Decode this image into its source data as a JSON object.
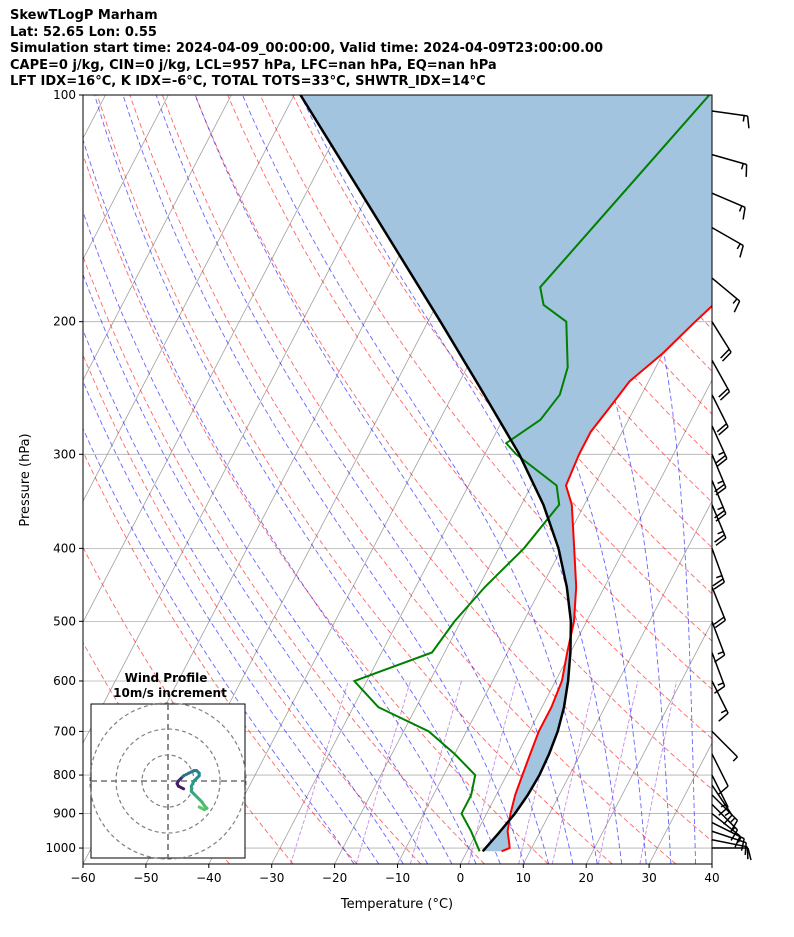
{
  "header": {
    "line1": "SkewTLogP Marham",
    "line2": "Lat: 52.65   Lon: 0.55",
    "line3": "Simulation start time: 2024-04-09_00:00:00, Valid time: 2024-04-09T23:00:00.00",
    "line4": "CAPE=0 j/kg, CIN=0 j/kg, LCL=957 hPa, LFC=nan hPa, EQ=nan hPa",
    "line5": "LFT IDX=16°C, K IDX=-6°C, TOTAL TOTS=33°C, SHWTR_IDX=14°C"
  },
  "chart_data": {
    "type": "skewt",
    "title": "SkewTLogP Marham",
    "xlabel": "Temperature (°C)",
    "ylabel": "Pressure (hPa)",
    "xlim": [
      -60,
      40
    ],
    "ylim": [
      1050,
      100
    ],
    "x_ticks": [
      -60,
      -50,
      -40,
      -30,
      -20,
      -10,
      0,
      10,
      20,
      30,
      40
    ],
    "x_tick_labels": [
      "−60",
      "−50",
      "−40",
      "−30",
      "−20",
      "−10",
      "0",
      "10",
      "20",
      "30",
      "40"
    ],
    "y_ticks": [
      1000,
      900,
      800,
      700,
      600,
      500,
      400,
      300,
      200,
      100
    ],
    "y_tick_labels": [
      "1000",
      "900",
      "800",
      "700",
      "600",
      "500",
      "400",
      "300",
      "200",
      "100"
    ],
    "colors": {
      "temperature": "#ff0000",
      "dewpoint": "#008000",
      "parcel": "#000000",
      "shade": "#a2c4de",
      "dry_adiabat": "#ff0000",
      "moist_adiabat": "#0000ff",
      "isotherm": "#808080"
    },
    "series": [
      {
        "name": "Temperature",
        "points": [
          [
            1010,
            5.5
          ],
          [
            1000,
            6.5
          ],
          [
            990,
            6.2
          ],
          [
            950,
            4.8
          ],
          [
            900,
            3.8
          ],
          [
            850,
            3.0
          ],
          [
            800,
            2.5
          ],
          [
            750,
            2.0
          ],
          [
            700,
            1.5
          ],
          [
            650,
            1.5
          ],
          [
            600,
            1.0
          ],
          [
            550,
            -0.5
          ],
          [
            500,
            -2.0
          ],
          [
            450,
            -4.5
          ],
          [
            400,
            -8.0
          ],
          [
            350,
            -12.0
          ],
          [
            330,
            -14.5
          ],
          [
            300,
            -15.0
          ],
          [
            280,
            -15.0
          ],
          [
            260,
            -14.0
          ],
          [
            240,
            -13.0
          ],
          [
            220,
            -10.0
          ],
          [
            200,
            -7.5
          ],
          [
            180,
            -4.5
          ],
          [
            160,
            -2.0
          ],
          [
            150,
            -1.0
          ],
          [
            140,
            0.0
          ],
          [
            125,
            3.0
          ],
          [
            110,
            5.0
          ],
          [
            100,
            7.0
          ]
        ]
      },
      {
        "name": "Dewpoint",
        "points": [
          [
            1010,
            2.0
          ],
          [
            950,
            -1.0
          ],
          [
            900,
            -4.0
          ],
          [
            850,
            -4.0
          ],
          [
            800,
            -5.0
          ],
          [
            750,
            -10.0
          ],
          [
            700,
            -16.0
          ],
          [
            650,
            -26.0
          ],
          [
            600,
            -32.0
          ],
          [
            550,
            -22.0
          ],
          [
            500,
            -21.0
          ],
          [
            450,
            -19.0
          ],
          [
            400,
            -16.0
          ],
          [
            350,
            -14.0
          ],
          [
            330,
            -16.0
          ],
          [
            300,
            -25.0
          ],
          [
            290,
            -27.5
          ],
          [
            270,
            -24.0
          ],
          [
            250,
            -23.0
          ],
          [
            230,
            -24.0
          ],
          [
            200,
            -28.0
          ],
          [
            190,
            -33.0
          ],
          [
            180,
            -35.0
          ],
          [
            100,
            -24.0
          ]
        ]
      },
      {
        "name": "Parcel",
        "points": [
          [
            1010,
            2.5
          ],
          [
            957,
            3.5
          ],
          [
            900,
            4.5
          ],
          [
            850,
            5.0
          ],
          [
            800,
            5.2
          ],
          [
            750,
            5.0
          ],
          [
            700,
            4.5
          ],
          [
            650,
            3.5
          ],
          [
            600,
            2.0
          ],
          [
            550,
            0.0
          ],
          [
            500,
            -2.5
          ],
          [
            450,
            -6.0
          ],
          [
            400,
            -10.5
          ],
          [
            350,
            -16.5
          ],
          [
            300,
            -24.5
          ],
          [
            250,
            -35.0
          ],
          [
            200,
            -48.0
          ],
          [
            150,
            -65.0
          ],
          [
            100,
            -89.0
          ]
        ]
      }
    ],
    "wind_barbs": [
      {
        "p": 1000,
        "u": -4,
        "v": 0
      },
      {
        "p": 975,
        "u": -5,
        "v": 1
      },
      {
        "p": 950,
        "u": -6,
        "v": 2
      },
      {
        "p": 925,
        "u": -6,
        "v": 3
      },
      {
        "p": 900,
        "u": -5,
        "v": 4
      },
      {
        "p": 875,
        "u": -5,
        "v": 5
      },
      {
        "p": 850,
        "u": -5,
        "v": 5
      },
      {
        "p": 825,
        "u": -4,
        "v": 6
      },
      {
        "p": 800,
        "u": -3,
        "v": 6
      },
      {
        "p": 750,
        "u": -2,
        "v": 4
      },
      {
        "p": 700,
        "u": -2,
        "v": 2
      },
      {
        "p": 600,
        "u": -3,
        "v": 6
      },
      {
        "p": 550,
        "u": -3,
        "v": 8
      },
      {
        "p": 500,
        "u": -3,
        "v": 8
      },
      {
        "p": 450,
        "u": -4,
        "v": 10
      },
      {
        "p": 400,
        "u": -4,
        "v": 11
      },
      {
        "p": 350,
        "u": -5,
        "v": 12
      },
      {
        "p": 325,
        "u": -5,
        "v": 12
      },
      {
        "p": 300,
        "u": -5,
        "v": 12
      },
      {
        "p": 275,
        "u": -5,
        "v": 11
      },
      {
        "p": 250,
        "u": -5,
        "v": 10
      },
      {
        "p": 225,
        "u": -5,
        "v": 9
      },
      {
        "p": 200,
        "u": -5,
        "v": 8
      },
      {
        "p": 175,
        "u": -6,
        "v": 5
      },
      {
        "p": 150,
        "u": -7,
        "v": 4
      },
      {
        "p": 135,
        "u": -7,
        "v": 3
      },
      {
        "p": 120,
        "u": -7,
        "v": 2
      },
      {
        "p": 105,
        "u": -7,
        "v": 1
      }
    ],
    "hodograph": {
      "title": "Wind Profile",
      "subtitle": "10m/s increment",
      "rings_ms": [
        10,
        20,
        30
      ],
      "uv": [
        [
          12,
          -10
        ],
        [
          14,
          -11
        ],
        [
          15,
          -10.5
        ],
        [
          14,
          -9.5
        ],
        [
          13,
          -8
        ],
        [
          12,
          -7
        ],
        [
          11,
          -6
        ],
        [
          10,
          -5
        ],
        [
          9,
          -4
        ],
        [
          9,
          -2
        ],
        [
          10,
          0
        ],
        [
          11,
          1
        ],
        [
          12,
          2
        ],
        [
          12,
          3
        ],
        [
          11,
          4
        ],
        [
          10,
          4
        ],
        [
          8,
          3
        ],
        [
          6,
          2
        ],
        [
          5,
          1
        ],
        [
          4,
          0
        ],
        [
          3.5,
          -1
        ],
        [
          4,
          -2
        ],
        [
          6,
          -3
        ]
      ]
    }
  }
}
